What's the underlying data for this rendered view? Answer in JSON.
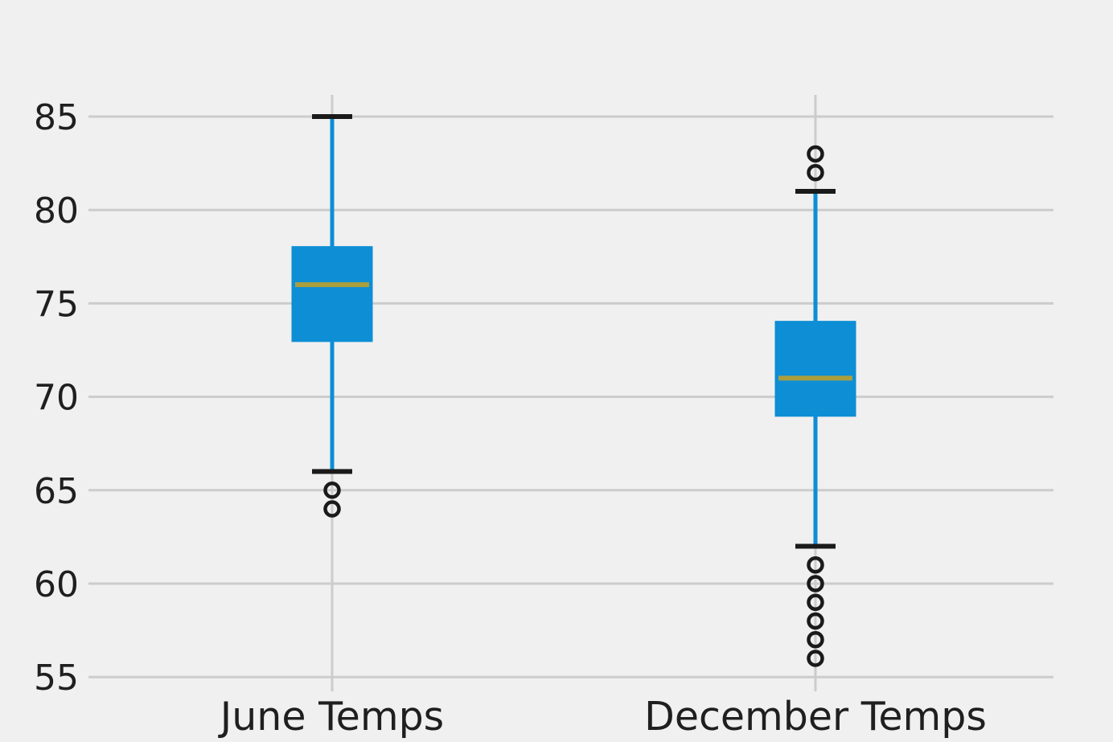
{
  "chart_data": {
    "type": "boxplot",
    "title": "",
    "xlabel": "",
    "ylabel": "",
    "categories": [
      "June Temps",
      "December Temps"
    ],
    "series": [
      {
        "name": "June Temps",
        "whisker_low": 66,
        "q1": 73,
        "median": 76,
        "q3": 78,
        "whisker_high": 85,
        "outliers": [
          65,
          64
        ]
      },
      {
        "name": "December Temps",
        "whisker_low": 62,
        "q1": 69,
        "median": 71,
        "q3": 74,
        "whisker_high": 81,
        "outliers": [
          83,
          82,
          61,
          60,
          59,
          58,
          57,
          56
        ]
      }
    ],
    "yticks": [
      55,
      60,
      65,
      70,
      75,
      80,
      85
    ],
    "ylim": [
      54.4,
      86.2
    ],
    "grid": true,
    "legend": false,
    "colors": {
      "background": "#f0f0f0",
      "gridline": "#cccccc",
      "box_fill": "#0d8ed5",
      "whisker": "#0d8ed5",
      "cap": "#1a1a1a",
      "median": "#ab9e3e",
      "outlier_edge": "#1a1a1a",
      "tick_label": "#1f1f1f"
    }
  }
}
